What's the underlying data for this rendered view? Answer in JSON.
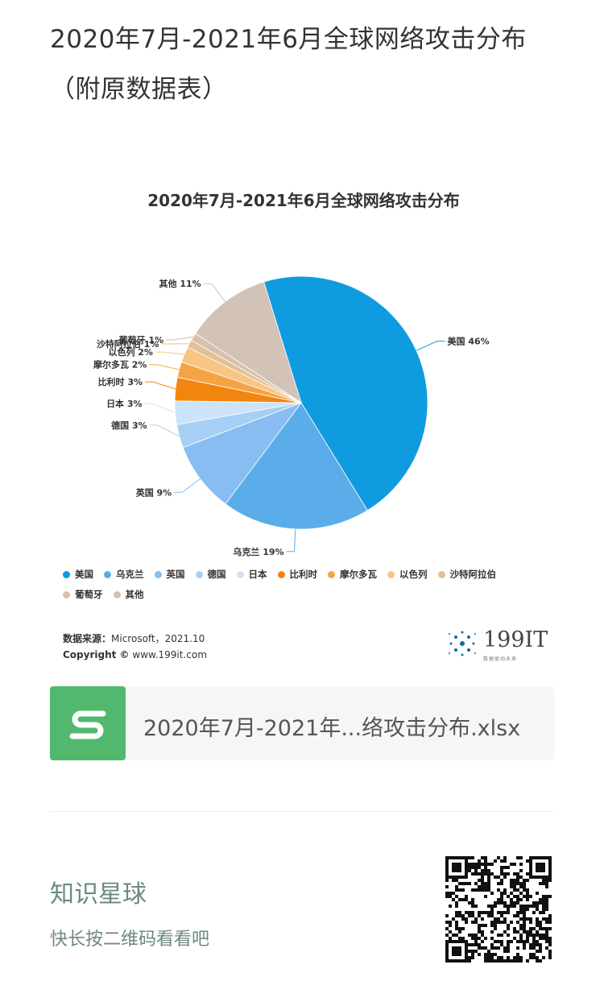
{
  "post": {
    "title": "2020年7月-2021年6月全球网络攻击分布（附原数据表）"
  },
  "chart_data": {
    "type": "pie",
    "title": "2020年7月-2021年6月全球网络攻击分布",
    "slices": [
      {
        "name": "美国",
        "value": 46,
        "label": "美国 46%",
        "color": "#0f9be0"
      },
      {
        "name": "乌克兰",
        "value": 19,
        "label": "乌克兰 19%",
        "color": "#5aade9"
      },
      {
        "name": "英国",
        "value": 9,
        "label": "英国 9%",
        "color": "#87bdf0"
      },
      {
        "name": "德国",
        "value": 3,
        "label": "德国 3%",
        "color": "#a7cff5"
      },
      {
        "name": "日本",
        "value": 3,
        "label": "日本 3%",
        "color": "#cce3fa"
      },
      {
        "name": "比利时",
        "value": 3,
        "label": "比利时 3%",
        "color": "#f3850f"
      },
      {
        "name": "摩尔多瓦",
        "value": 2,
        "label": "摩尔多瓦 2%",
        "color": "#f5a445"
      },
      {
        "name": "以色列",
        "value": 2,
        "label": "以色列 2%",
        "color": "#f8c585"
      },
      {
        "name": "沙特阿拉伯",
        "value": 1,
        "label": "沙特阿拉伯 1%",
        "color": "#e3c096"
      },
      {
        "name": "葡萄牙",
        "value": 1,
        "label": "葡萄牙 1%",
        "color": "#d8c0ad"
      },
      {
        "name": "其他",
        "value": 11,
        "label": "其他 11%",
        "color": "#d3c2b6"
      }
    ],
    "legend_position": "bottom"
  },
  "source": {
    "label": "数据来源：",
    "value": "Microsoft，2021.10",
    "copyright_label": "Copyright ©",
    "copyright_value": "www.199it.com"
  },
  "logo": {
    "text": "199IT",
    "subtitle": "数据驱动未来"
  },
  "file": {
    "icon": "spreadsheet-s-icon",
    "name": "2020年7月-2021年...络攻击分布.xlsx"
  },
  "promo": {
    "title": "知识星球",
    "subtitle": "快长按二维码看看吧"
  }
}
